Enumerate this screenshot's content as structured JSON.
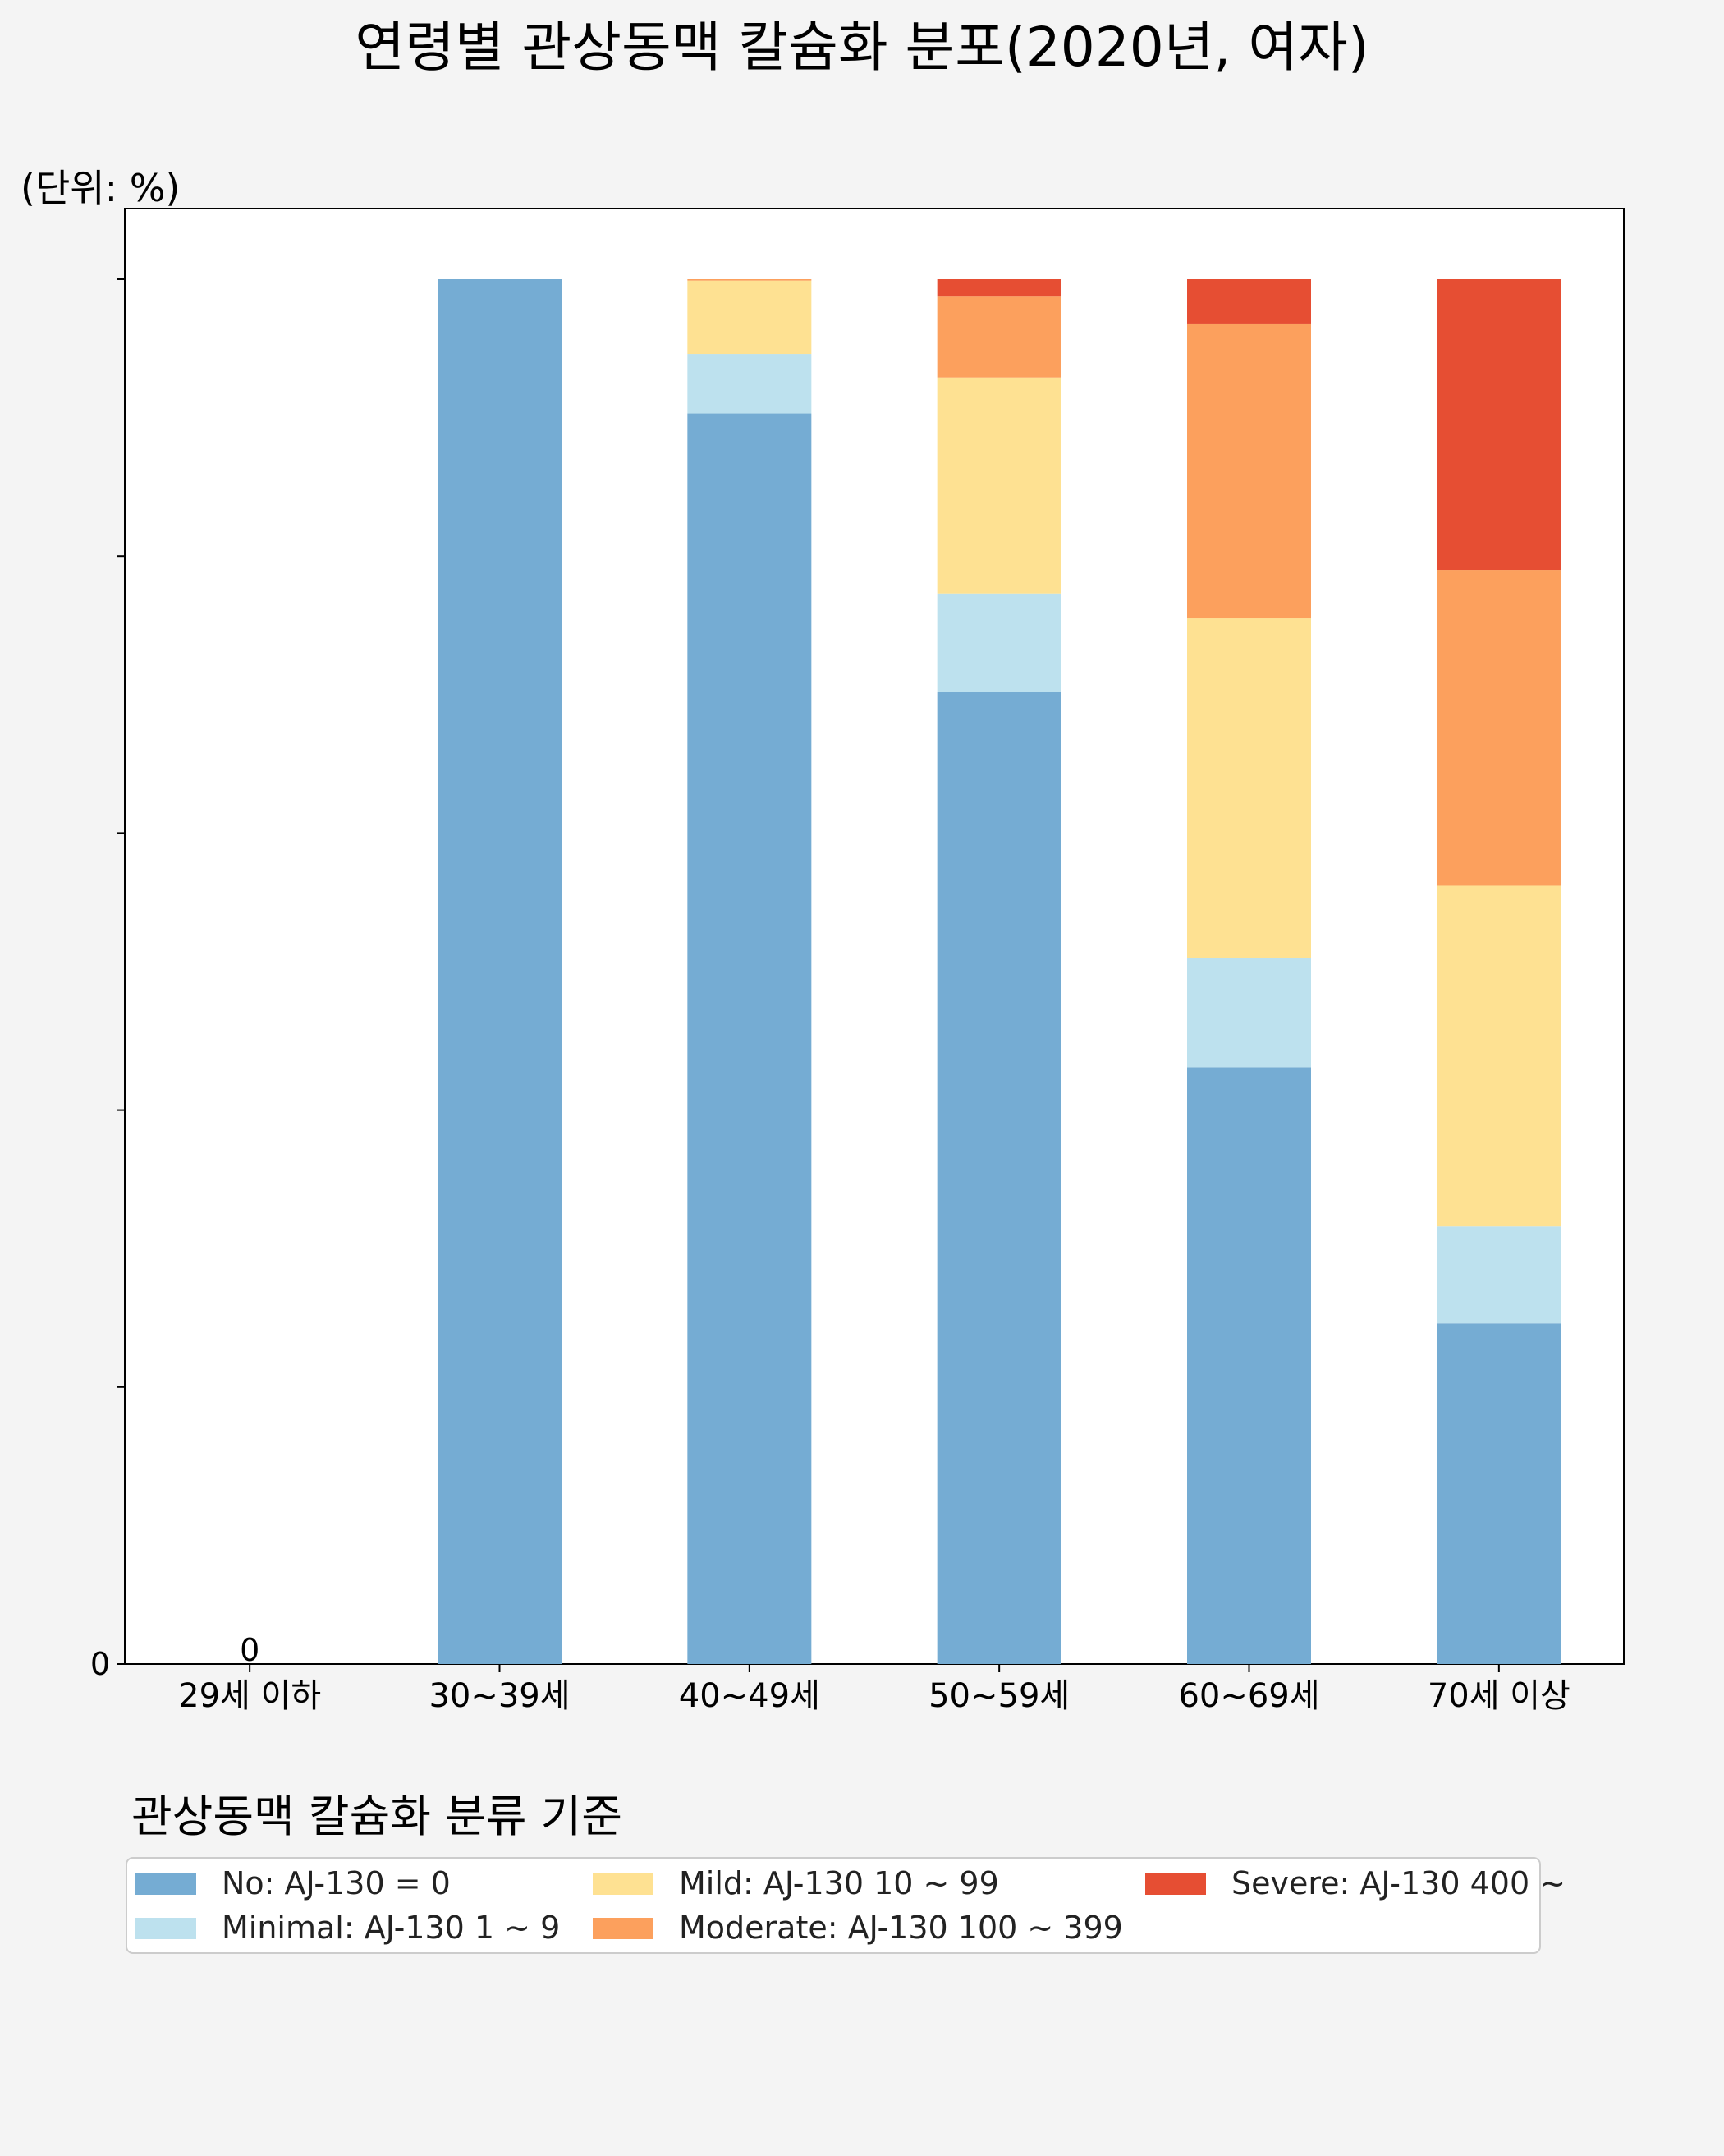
{
  "chart_data": {
    "type": "bar",
    "stacked": true,
    "title": "연령별 관상동맥 칼슘화 분포(2020년, 여자)",
    "unit_label": "(단위: %)",
    "categories": [
      "29세 이하",
      "30~39세",
      "40~49세",
      "50~59세",
      "60~69세",
      "70세 이상"
    ],
    "ylim": [
      0,
      105
    ],
    "y_tick_values": [
      0,
      20,
      40,
      60,
      80,
      100
    ],
    "y_tick_labels": [
      "0",
      "",
      "",
      "",
      "",
      ""
    ],
    "grid": false,
    "legend_placement": "bottom",
    "zero_label": "0",
    "series": [
      {
        "name": "No: AJ-130 = 0",
        "color": "#75acd3",
        "values": [
          0,
          100,
          90.3,
          70.2,
          43.1,
          24.6
        ]
      },
      {
        "name": "Minimal: AJ-130 1 ~ 9",
        "color": "#bde1ee",
        "values": [
          0,
          0,
          4.3,
          7.1,
          7.9,
          7.0
        ]
      },
      {
        "name": "Mild: AJ-130 10 ~ 99",
        "color": "#fee192",
        "values": [
          0,
          0,
          5.3,
          15.6,
          24.5,
          24.6
        ]
      },
      {
        "name": "Moderate: AJ-130 100 ~ 399",
        "color": "#fca05d",
        "values": [
          0,
          0,
          0.1,
          5.9,
          21.3,
          22.8
        ]
      },
      {
        "name": "Severe: AJ-130 400 ~",
        "color": "#e64e33",
        "values": [
          0,
          0,
          0,
          1.2,
          3.2,
          21.0
        ]
      }
    ]
  },
  "legend": {
    "title": "관상동맥 칼슘화 분류 기준"
  }
}
